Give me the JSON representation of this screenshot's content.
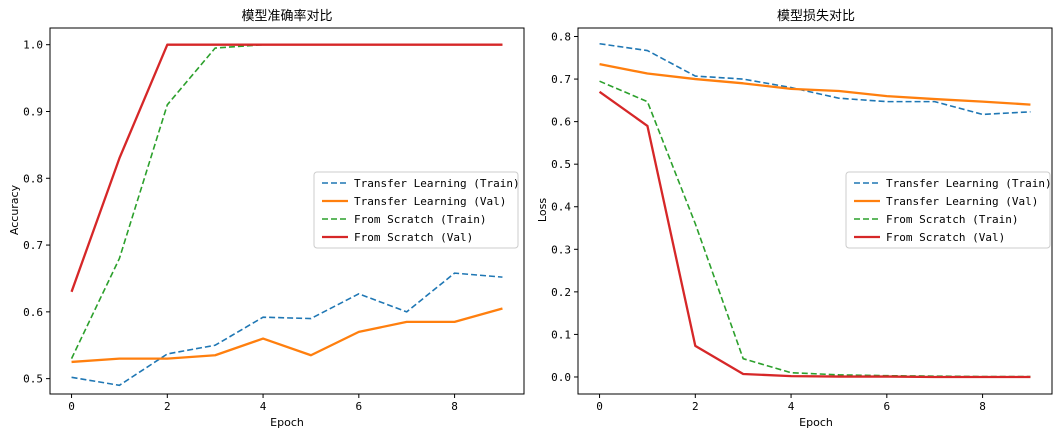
{
  "chart_data": [
    {
      "type": "line",
      "title": "模型准确率对比",
      "xlabel": "Epoch",
      "ylabel": "Accuracy",
      "xlim": [
        -0.45,
        9.45
      ],
      "ylim": [
        0.477,
        1.025
      ],
      "xticks": [
        0,
        2,
        4,
        6,
        8
      ],
      "yticks": [
        0.5,
        0.6,
        0.7,
        0.8,
        0.9,
        1.0
      ],
      "xtick_labels": [
        "0",
        "2",
        "4",
        "6",
        "8"
      ],
      "ytick_labels": [
        "0.5",
        "0.6",
        "0.7",
        "0.8",
        "0.9",
        "1.0"
      ],
      "grid": false,
      "legend_position": "center-right",
      "x": [
        0,
        1,
        2,
        3,
        4,
        5,
        6,
        7,
        8,
        9
      ],
      "series": [
        {
          "name": "Transfer Learning (Train)",
          "color": "#1f77b4",
          "style": "dashed",
          "values": [
            0.502,
            0.49,
            0.537,
            0.55,
            0.592,
            0.59,
            0.627,
            0.6,
            0.658,
            0.652
          ]
        },
        {
          "name": "Transfer Learning (Val)",
          "color": "#ff7f0e",
          "style": "solid",
          "values": [
            0.525,
            0.53,
            0.53,
            0.535,
            0.56,
            0.535,
            0.57,
            0.585,
            0.585,
            0.605
          ]
        },
        {
          "name": "From Scratch (Train)",
          "color": "#2ca02c",
          "style": "dashed",
          "values": [
            0.53,
            0.68,
            0.91,
            0.995,
            1.0,
            1.0,
            1.0,
            1.0,
            1.0,
            1.0
          ]
        },
        {
          "name": "From Scratch (Val)",
          "color": "#d62728",
          "style": "solid",
          "values": [
            0.63,
            0.83,
            1.0,
            1.0,
            1.0,
            1.0,
            1.0,
            1.0,
            1.0,
            1.0
          ]
        }
      ]
    },
    {
      "type": "line",
      "title": "模型损失对比",
      "xlabel": "Epoch",
      "ylabel": "Loss",
      "xlim": [
        -0.45,
        9.45
      ],
      "ylim": [
        -0.04,
        0.82
      ],
      "xticks": [
        0,
        2,
        4,
        6,
        8
      ],
      "yticks": [
        0.0,
        0.1,
        0.2,
        0.3,
        0.4,
        0.5,
        0.6,
        0.7,
        0.8
      ],
      "xtick_labels": [
        "0",
        "2",
        "4",
        "6",
        "8"
      ],
      "ytick_labels": [
        "0.0",
        "0.1",
        "0.2",
        "0.3",
        "0.4",
        "0.5",
        "0.6",
        "0.7",
        "0.8"
      ],
      "grid": false,
      "legend_position": "center-right",
      "x": [
        0,
        1,
        2,
        3,
        4,
        5,
        6,
        7,
        8,
        9
      ],
      "series": [
        {
          "name": "Transfer Learning (Train)",
          "color": "#1f77b4",
          "style": "dashed",
          "values": [
            0.783,
            0.767,
            0.707,
            0.7,
            0.68,
            0.655,
            0.647,
            0.647,
            0.617,
            0.623
          ]
        },
        {
          "name": "Transfer Learning (Val)",
          "color": "#ff7f0e",
          "style": "solid",
          "values": [
            0.735,
            0.713,
            0.7,
            0.69,
            0.677,
            0.672,
            0.66,
            0.653,
            0.647,
            0.64
          ]
        },
        {
          "name": "From Scratch (Train)",
          "color": "#2ca02c",
          "style": "dashed",
          "values": [
            0.695,
            0.647,
            0.36,
            0.043,
            0.01,
            0.005,
            0.003,
            0.002,
            0.001,
            0.001
          ]
        },
        {
          "name": "From Scratch (Val)",
          "color": "#d62728",
          "style": "solid",
          "values": [
            0.67,
            0.59,
            0.073,
            0.007,
            0.002,
            0.001,
            0.001,
            0.0,
            0.0,
            0.0
          ]
        }
      ]
    }
  ]
}
